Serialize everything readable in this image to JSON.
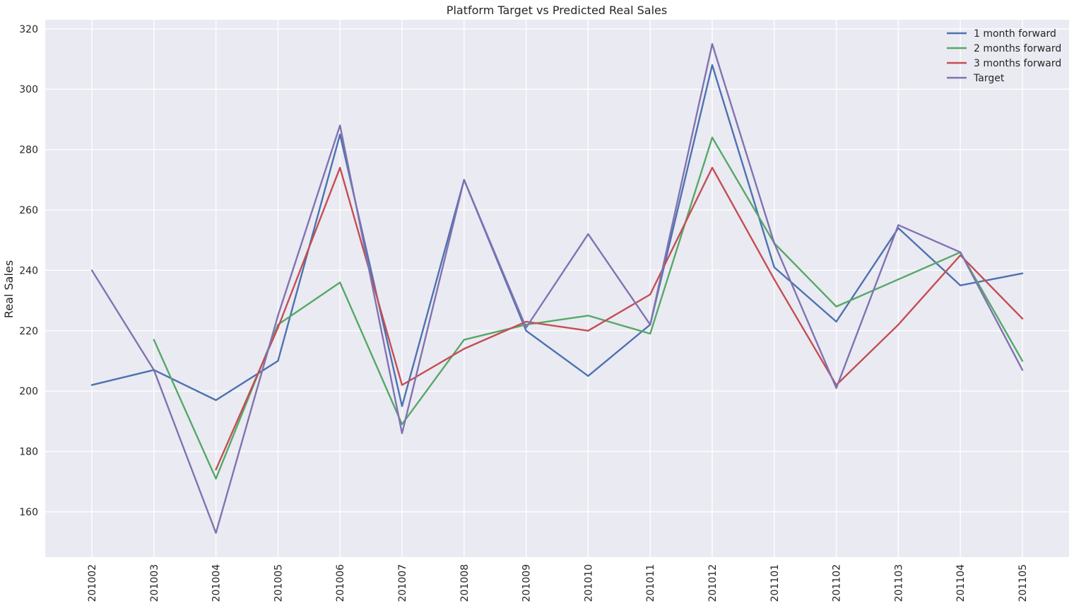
{
  "chart_data": {
    "type": "line",
    "title": "Platform Target vs Predicted Real Sales",
    "xlabel": "",
    "ylabel": "Real Sales",
    "categories": [
      "201002",
      "201003",
      "201004",
      "201005",
      "201006",
      "201007",
      "201008",
      "201009",
      "201010",
      "201011",
      "201012",
      "201101",
      "201102",
      "201103",
      "201104",
      "201105"
    ],
    "ylim": [
      145,
      323
    ],
    "yticks": [
      160,
      180,
      200,
      220,
      240,
      260,
      280,
      300,
      320
    ],
    "grid": true,
    "legend_position": "top-right",
    "series": [
      {
        "name": "1 month forward",
        "color": "#4c72b0",
        "values": [
          202,
          207,
          197,
          210,
          285,
          195,
          270,
          220,
          205,
          222,
          308,
          241,
          223,
          254,
          235,
          239
        ]
      },
      {
        "name": "2 months forward",
        "color": "#55a868",
        "values": [
          null,
          217,
          171,
          222,
          236,
          189,
          217,
          222,
          225,
          219,
          284,
          249,
          228,
          237,
          246,
          210
        ]
      },
      {
        "name": "3 months forward",
        "color": "#c44e52",
        "values": [
          null,
          null,
          174,
          221,
          274,
          202,
          214,
          223,
          220,
          232,
          274,
          237,
          202,
          222,
          245,
          224
        ]
      },
      {
        "name": "Target",
        "color": "#8172b2",
        "values": [
          240,
          207,
          153,
          225,
          288,
          186,
          270,
          221,
          252,
          222,
          315,
          249,
          201,
          255,
          246,
          207
        ]
      }
    ]
  },
  "style": {
    "plot_background": "#eaeaf2",
    "grid_color": "#ffffff",
    "text_color": "#262626"
  }
}
